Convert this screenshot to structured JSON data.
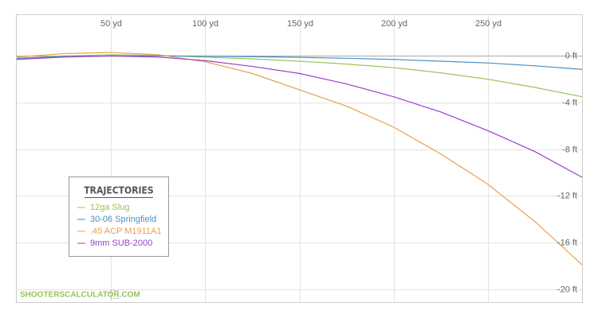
{
  "chart_data": {
    "type": "line",
    "x": [
      0,
      25,
      50,
      75,
      100,
      125,
      150,
      175,
      200,
      225,
      250,
      275,
      300
    ],
    "xlim": [
      0,
      300
    ],
    "xticks": [
      {
        "value": 50,
        "label": "50 yd"
      },
      {
        "value": 100,
        "label": "100 yd"
      },
      {
        "value": 150,
        "label": "150 yd"
      },
      {
        "value": 200,
        "label": "200 yd"
      },
      {
        "value": 250,
        "label": "250 yd"
      }
    ],
    "ylim": [
      -21.1,
      3.5
    ],
    "yticks": [
      {
        "value": 0,
        "label": "0 ft"
      },
      {
        "value": -4,
        "label": "-4 ft"
      },
      {
        "value": -8,
        "label": "-8 ft"
      },
      {
        "value": -12,
        "label": "-12 ft"
      },
      {
        "value": -16,
        "label": "-16 ft"
      },
      {
        "value": -20,
        "label": "-20 ft"
      }
    ],
    "grid": true,
    "legend_title": "TRAJECTORIES",
    "watermark": "SHOOTERSCALCULATOR.COM",
    "series": [
      {
        "name": "12ga Slug",
        "color": "#98c45a",
        "values": [
          -0.2,
          0.0,
          0.1,
          0.05,
          -0.1,
          -0.25,
          -0.45,
          -0.7,
          -1.0,
          -1.45,
          -2.0,
          -2.7,
          -3.5
        ]
      },
      {
        "name": "30-06 Springfield",
        "color": "#4a8fc4",
        "values": [
          -0.2,
          -0.05,
          0,
          0,
          -0.02,
          -0.06,
          -0.12,
          -0.2,
          -0.3,
          -0.45,
          -0.6,
          -0.85,
          -1.15
        ]
      },
      {
        "name": ".45 ACP M1911A1",
        "color": "#e8a04c",
        "values": [
          -0.1,
          0.2,
          0.3,
          0.1,
          -0.5,
          -1.5,
          -2.9,
          -4.3,
          -6.1,
          -8.4,
          -11,
          -14.2,
          -17.9
        ]
      },
      {
        "name": "9mm SUB-2000",
        "color": "#9b3fc7",
        "values": [
          -0.3,
          -0.1,
          0.0,
          -0.1,
          -0.4,
          -0.9,
          -1.5,
          -2.4,
          -3.5,
          -4.8,
          -6.4,
          -8.2,
          -10.4
        ]
      }
    ]
  }
}
